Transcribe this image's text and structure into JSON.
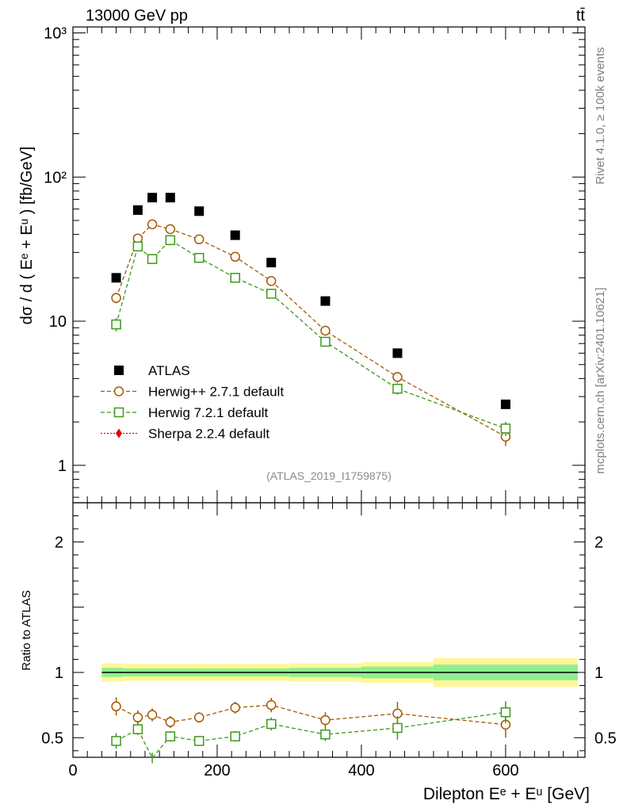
{
  "header": {
    "energy_label": "13000 GeV pp",
    "process_label": "tt̄"
  },
  "side_labels": {
    "rivet": "Rivet 4.1.0, ≥ 100k events",
    "mcplots": "mcplots.cern.ch [arXiv:2401.10621]"
  },
  "analysis_id": "(ATLAS_2019_I1759875)",
  "chart_data": [
    {
      "type": "scatter",
      "panel": "main",
      "ylabel": "dσ / d ( Eᵉ + Eᵘ ) [fb/GeV]",
      "yscale": "log",
      "ylim": [
        0.55,
        1100
      ],
      "xlim": [
        0,
        710
      ],
      "ytick_labels": [
        "1",
        "10",
        "10²",
        "10³"
      ],
      "x": [
        60,
        90,
        110,
        135,
        175,
        225,
        275,
        350,
        450,
        600
      ],
      "series": [
        {
          "name": "ATLAS",
          "color": "#000000",
          "marker": "square-filled",
          "line": false,
          "values": [
            20,
            59,
            72,
            72,
            58,
            39.5,
            25.5,
            13.8,
            6.0,
            2.65
          ],
          "errors": [
            0.9,
            1.8,
            2.0,
            2.0,
            1.6,
            1.1,
            0.8,
            0.5,
            0.3,
            0.15
          ]
        },
        {
          "name": "Herwig++ 2.7.1 default",
          "color": "#a35a00",
          "marker": "circle-open",
          "line": true,
          "values": [
            14.5,
            37.5,
            47,
            43.5,
            37,
            28,
            19,
            8.6,
            4.1,
            1.58
          ],
          "errors": [
            1.2,
            2.0,
            2.2,
            2.0,
            1.5,
            1.2,
            0.9,
            0.45,
            0.35,
            0.22
          ]
        },
        {
          "name": "Herwig 7.2.1 default",
          "color": "#3c9a1a",
          "marker": "square-open",
          "line": true,
          "values": [
            9.5,
            33,
            27,
            36.5,
            27.5,
            20,
            15.5,
            7.2,
            3.4,
            1.8
          ],
          "errors": [
            1.0,
            2.0,
            2.0,
            2.0,
            1.3,
            1.0,
            0.8,
            0.45,
            0.3,
            0.2
          ]
        },
        {
          "name": "Sherpa 2.2.4 default",
          "color": "#e00000",
          "marker": "diamond-filled",
          "line": true,
          "values": [],
          "errors": []
        }
      ]
    },
    {
      "type": "scatter",
      "panel": "ratio",
      "xlabel": "Dilepton Eᵉ + Eᵘ [GeV]",
      "ylabel": "Ratio to ATLAS",
      "ylim": [
        0.35,
        2.3
      ],
      "xlim": [
        0,
        710
      ],
      "xtick_labels": [
        "0",
        "200",
        "400",
        "600"
      ],
      "ytick_labels": [
        "0.5",
        "1",
        "2"
      ],
      "bands": {
        "edges": [
          40,
          70,
          100,
          120,
          150,
          200,
          250,
          300,
          400,
          500,
          700
        ],
        "inner": [
          0.035,
          0.03,
          0.03,
          0.03,
          0.03,
          0.03,
          0.03,
          0.035,
          0.045,
          0.06
        ],
        "outer": [
          0.07,
          0.065,
          0.065,
          0.065,
          0.065,
          0.065,
          0.065,
          0.07,
          0.08,
          0.11
        ]
      },
      "series": [
        {
          "name": "Herwig++ 2.7.1 default",
          "color": "#a35a00",
          "marker": "circle-open",
          "values": [
            0.74,
            0.655,
            0.675,
            0.62,
            0.655,
            0.73,
            0.75,
            0.635,
            0.685,
            0.6
          ],
          "errors": [
            0.07,
            0.055,
            0.05,
            0.045,
            0.04,
            0.045,
            0.055,
            0.06,
            0.09,
            0.1
          ]
        },
        {
          "name": "Herwig 7.2.1 default",
          "color": "#3c9a1a",
          "marker": "square-open",
          "values": [
            0.475,
            0.565,
            0.345,
            0.51,
            0.475,
            0.51,
            0.605,
            0.525,
            0.575,
            0.695
          ],
          "errors": [
            0.06,
            0.045,
            0.04,
            0.04,
            0.035,
            0.04,
            0.05,
            0.05,
            0.09,
            0.085
          ]
        }
      ]
    }
  ]
}
